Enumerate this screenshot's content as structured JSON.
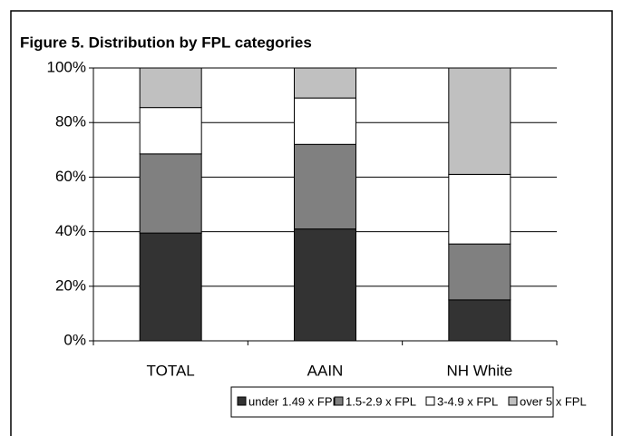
{
  "chart_data": {
    "type": "stacked_bar",
    "title": "Figure 5. Distribution by FPL categories",
    "categories": [
      "TOTAL",
      "AAIN",
      "NH White"
    ],
    "series": [
      {
        "name": "under 1.49 x FPL",
        "color": "#333333",
        "values": [
          39.5,
          41,
          15
        ]
      },
      {
        "name": "1.5-2.9 x FPL",
        "color": "#808080",
        "values": [
          29,
          31,
          20.5
        ]
      },
      {
        "name": "3-4.9 x FPL",
        "color": "#ffffff",
        "values": [
          17,
          17,
          25.5
        ]
      },
      {
        "name": "over 5 x FPL",
        "color": "#c0c0c0",
        "values": [
          14.5,
          11,
          39
        ]
      }
    ],
    "ylim": [
      0,
      100
    ],
    "yticks": [
      {
        "value": 0,
        "label": "0%"
      },
      {
        "value": 20,
        "label": "20%"
      },
      {
        "value": 40,
        "label": "40%"
      },
      {
        "value": 60,
        "label": "60%"
      },
      {
        "value": 80,
        "label": "80%"
      },
      {
        "value": 100,
        "label": "100%"
      }
    ],
    "grid": true,
    "legend": "bottom"
  }
}
